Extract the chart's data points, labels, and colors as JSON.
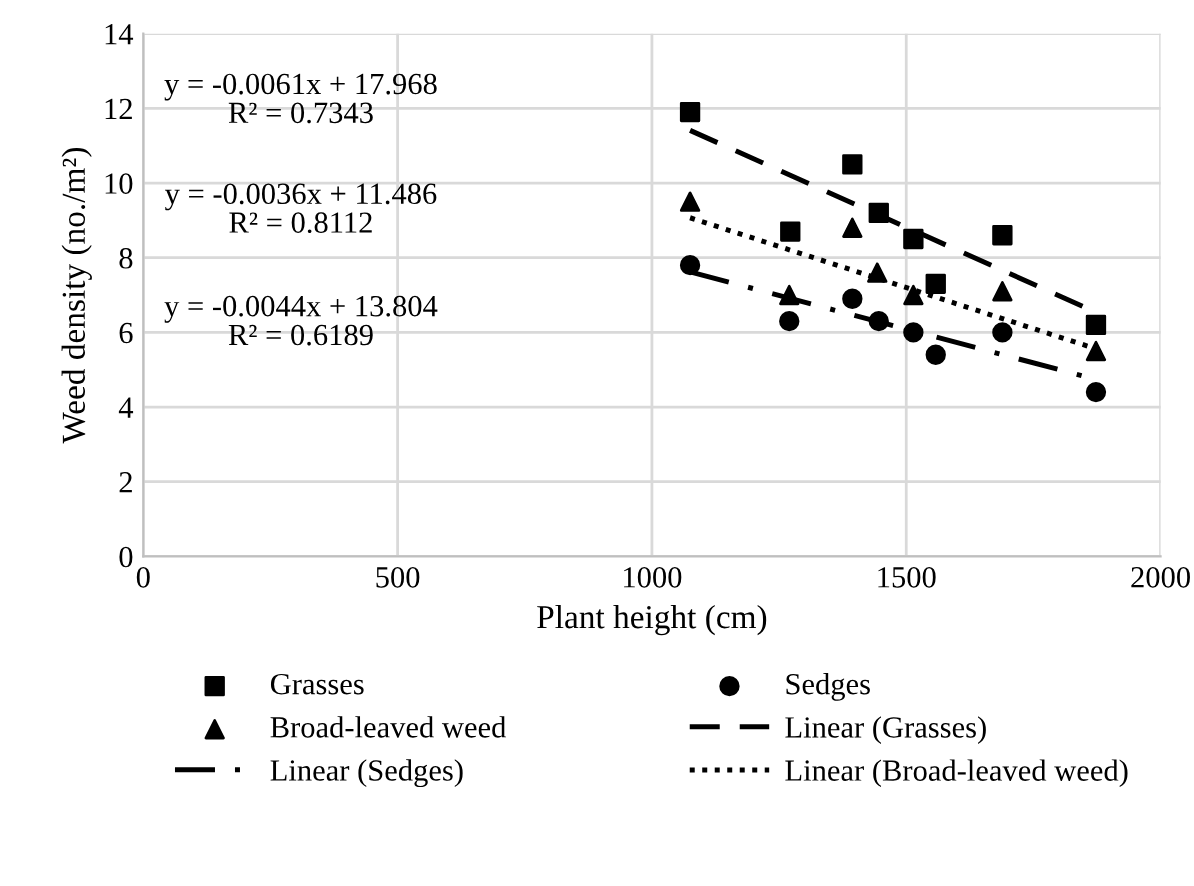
{
  "chart_data": {
    "type": "scatter",
    "xlabel": "Plant height (cm)",
    "ylabel": "Weed density (no./m²)",
    "xlim": [
      0,
      2000
    ],
    "xticks": [
      0,
      500,
      1000,
      1500,
      2000
    ],
    "ylim": [
      0,
      14
    ],
    "yticks": [
      0,
      2,
      4,
      6,
      8,
      10,
      12,
      14
    ],
    "grid": true,
    "legend": "bottom",
    "series": [
      {
        "name": "Grasses",
        "marker": "square",
        "color": "#000000",
        "x": [
          1075,
          1272,
          1394,
          1446,
          1514,
          1558,
          1689,
          1873
        ],
        "values": [
          11.9,
          8.7,
          10.5,
          9.2,
          8.5,
          7.3,
          8.6,
          6.2
        ]
      },
      {
        "name": "Sedges",
        "marker": "circle",
        "color": "#000000",
        "x": [
          1075,
          1270,
          1394,
          1446,
          1514,
          1558,
          1689,
          1873
        ],
        "values": [
          7.8,
          6.3,
          6.9,
          6.3,
          6.0,
          5.4,
          6.0,
          4.4
        ]
      },
      {
        "name": "Broad-leaved weed",
        "marker": "triangle",
        "color": "#000000",
        "x": [
          1075,
          1270,
          1394,
          1443,
          1514,
          1689,
          1873
        ],
        "values": [
          9.5,
          7.0,
          8.8,
          7.6,
          7.0,
          7.1,
          5.5
        ]
      },
      {
        "name": "Linear (Grasses)",
        "type": "line",
        "line_style": "dashed",
        "color": "#000000",
        "x": [
          1075,
          1873
        ],
        "values": [
          11.41,
          6.54
        ]
      },
      {
        "name": "Linear (Sedges)",
        "type": "line",
        "line_style": "dashdot",
        "color": "#000000",
        "x": [
          1075,
          1873
        ],
        "values": [
          7.62,
          4.74
        ]
      },
      {
        "name": "Linear (Broad-leaved weed)",
        "type": "line",
        "line_style": "dotted",
        "color": "#000000",
        "x": [
          1075,
          1873
        ],
        "values": [
          9.07,
          5.56
        ]
      }
    ],
    "annotations": [
      "y = -0.0061x + 17.968\nR² = 0.7343",
      "y = -0.0036x + 11.486\nR² = 0.8112",
      "y = -0.0044x + 13.804\nR² = 0.6189"
    ]
  }
}
